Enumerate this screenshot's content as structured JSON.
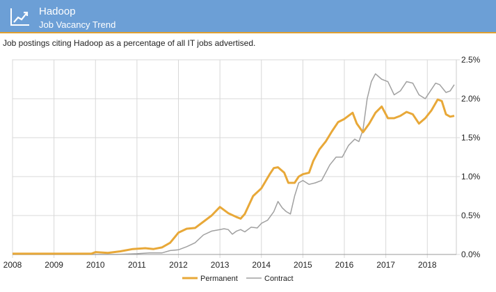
{
  "header": {
    "title": "Hadoop",
    "subtitle": "Job Vacancy Trend",
    "icon": "trend-up-icon",
    "background": "#6c9fd6",
    "accent": "#e0a030"
  },
  "caption": "Job postings citing Hadoop as a percentage of all IT jobs advertised.",
  "chart_data": {
    "type": "line",
    "xlabel": "",
    "ylabel": "",
    "xlim": [
      2008,
      2018.7
    ],
    "ylim": [
      0,
      2.5
    ],
    "grid": true,
    "y_axis_side": "right",
    "legend_position": "bottom",
    "x_ticks": [
      "2008",
      "2009",
      "2010",
      "2011",
      "2012",
      "2013",
      "2014",
      "2015",
      "2016",
      "2017",
      "2018"
    ],
    "y_ticks": [
      "0.0%",
      "0.5%",
      "1.0%",
      "1.5%",
      "2.0%",
      "2.5%"
    ],
    "series": [
      {
        "name": "Permanent",
        "color": "#e8a838",
        "points": [
          [
            2008,
            0.01
          ],
          [
            2009,
            0.01
          ],
          [
            2009.9,
            0.01
          ],
          [
            2010.0,
            0.03
          ],
          [
            2010.3,
            0.02
          ],
          [
            2010.6,
            0.04
          ],
          [
            2010.9,
            0.07
          ],
          [
            2011.2,
            0.08
          ],
          [
            2011.4,
            0.07
          ],
          [
            2011.6,
            0.09
          ],
          [
            2011.8,
            0.15
          ],
          [
            2012.0,
            0.28
          ],
          [
            2012.2,
            0.33
          ],
          [
            2012.4,
            0.34
          ],
          [
            2012.6,
            0.42
          ],
          [
            2012.8,
            0.5
          ],
          [
            2013.0,
            0.61
          ],
          [
            2013.2,
            0.53
          ],
          [
            2013.4,
            0.48
          ],
          [
            2013.5,
            0.46
          ],
          [
            2013.6,
            0.52
          ],
          [
            2013.8,
            0.75
          ],
          [
            2014.0,
            0.85
          ],
          [
            2014.2,
            1.03
          ],
          [
            2014.3,
            1.11
          ],
          [
            2014.4,
            1.12
          ],
          [
            2014.55,
            1.05
          ],
          [
            2014.65,
            0.92
          ],
          [
            2014.8,
            0.92
          ],
          [
            2014.9,
            1.0
          ],
          [
            2015.0,
            1.03
          ],
          [
            2015.15,
            1.05
          ],
          [
            2015.25,
            1.2
          ],
          [
            2015.4,
            1.35
          ],
          [
            2015.55,
            1.45
          ],
          [
            2015.7,
            1.58
          ],
          [
            2015.85,
            1.7
          ],
          [
            2016.0,
            1.74
          ],
          [
            2016.1,
            1.78
          ],
          [
            2016.2,
            1.82
          ],
          [
            2016.3,
            1.68
          ],
          [
            2016.45,
            1.57
          ],
          [
            2016.6,
            1.68
          ],
          [
            2016.75,
            1.82
          ],
          [
            2016.9,
            1.9
          ],
          [
            2017.05,
            1.75
          ],
          [
            2017.2,
            1.75
          ],
          [
            2017.35,
            1.78
          ],
          [
            2017.5,
            1.83
          ],
          [
            2017.65,
            1.8
          ],
          [
            2017.8,
            1.68
          ],
          [
            2017.95,
            1.75
          ],
          [
            2018.1,
            1.85
          ],
          [
            2018.25,
            1.99
          ],
          [
            2018.35,
            1.97
          ],
          [
            2018.45,
            1.8
          ],
          [
            2018.55,
            1.77
          ],
          [
            2018.65,
            1.78
          ]
        ]
      },
      {
        "name": "Contract",
        "color": "#a0a0a0",
        "points": [
          [
            2008,
            0.0
          ],
          [
            2009,
            0.0
          ],
          [
            2010,
            0.0
          ],
          [
            2010.5,
            0.0
          ],
          [
            2011.0,
            0.01
          ],
          [
            2011.3,
            0.02
          ],
          [
            2011.6,
            0.02
          ],
          [
            2011.8,
            0.05
          ],
          [
            2012.0,
            0.06
          ],
          [
            2012.2,
            0.1
          ],
          [
            2012.4,
            0.15
          ],
          [
            2012.6,
            0.25
          ],
          [
            2012.8,
            0.3
          ],
          [
            2013.0,
            0.32
          ],
          [
            2013.1,
            0.33
          ],
          [
            2013.2,
            0.32
          ],
          [
            2013.3,
            0.26
          ],
          [
            2013.4,
            0.3
          ],
          [
            2013.5,
            0.32
          ],
          [
            2013.6,
            0.29
          ],
          [
            2013.75,
            0.35
          ],
          [
            2013.9,
            0.34
          ],
          [
            2014.0,
            0.4
          ],
          [
            2014.15,
            0.44
          ],
          [
            2014.3,
            0.55
          ],
          [
            2014.4,
            0.68
          ],
          [
            2014.5,
            0.6
          ],
          [
            2014.6,
            0.55
          ],
          [
            2014.7,
            0.52
          ],
          [
            2014.8,
            0.75
          ],
          [
            2014.9,
            0.92
          ],
          [
            2015.0,
            0.95
          ],
          [
            2015.15,
            0.9
          ],
          [
            2015.3,
            0.92
          ],
          [
            2015.45,
            0.95
          ],
          [
            2015.55,
            1.05
          ],
          [
            2015.65,
            1.15
          ],
          [
            2015.8,
            1.25
          ],
          [
            2015.95,
            1.25
          ],
          [
            2016.1,
            1.4
          ],
          [
            2016.25,
            1.48
          ],
          [
            2016.35,
            1.45
          ],
          [
            2016.45,
            1.6
          ],
          [
            2016.55,
            2.0
          ],
          [
            2016.65,
            2.22
          ],
          [
            2016.75,
            2.32
          ],
          [
            2016.9,
            2.25
          ],
          [
            2017.05,
            2.22
          ],
          [
            2017.2,
            2.05
          ],
          [
            2017.35,
            2.1
          ],
          [
            2017.5,
            2.22
          ],
          [
            2017.65,
            2.2
          ],
          [
            2017.8,
            2.05
          ],
          [
            2017.95,
            2.0
          ],
          [
            2018.1,
            2.12
          ],
          [
            2018.2,
            2.2
          ],
          [
            2018.3,
            2.18
          ],
          [
            2018.45,
            2.08
          ],
          [
            2018.55,
            2.1
          ],
          [
            2018.65,
            2.18
          ]
        ]
      }
    ]
  }
}
